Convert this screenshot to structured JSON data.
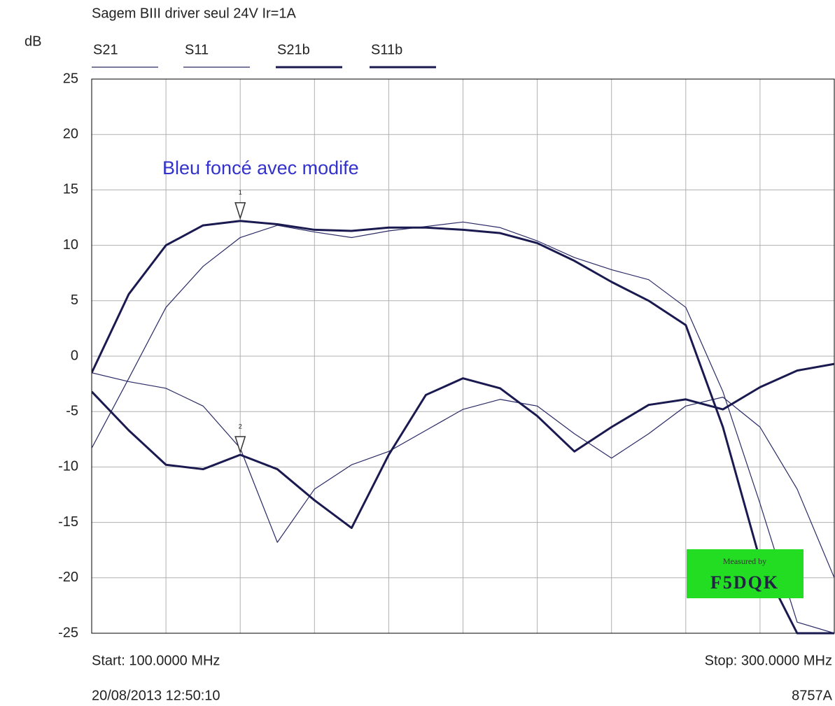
{
  "chart_data": {
    "type": "line",
    "title": "Sagem BIII driver seul 24V Ir=1A",
    "y_label": "dB",
    "annotation": "Bleu foncé avec modife",
    "start_label": "Start: 100.0000 MHz",
    "stop_label": "Stop: 300.0000 MHz",
    "timestamp": "20/08/2013 12:50:10",
    "instrument": "8757A",
    "watermark": {
      "line1": "Measured by",
      "line2": "F5DQK",
      "color": "#22dd22"
    },
    "annotation_color": "#3333cc",
    "xlim": [
      100,
      300
    ],
    "xticks": [
      100,
      120,
      140,
      160,
      180,
      200,
      220,
      240,
      260,
      280,
      300
    ],
    "ylim": [
      -25,
      25
    ],
    "yticks": [
      25,
      20,
      15,
      10,
      5,
      0,
      -5,
      -10,
      -15,
      -20,
      -25
    ],
    "grid": true,
    "x": [
      100,
      110,
      120,
      130,
      140,
      150,
      160,
      170,
      180,
      190,
      200,
      210,
      220,
      230,
      240,
      250,
      260,
      270,
      280,
      290,
      300
    ],
    "series": [
      {
        "name": "S21",
        "color": "#2a2a66",
        "linewidth": 1.2,
        "values": [
          -8.3,
          -2,
          4.4,
          8.1,
          10.7,
          11.8,
          11.2,
          10.7,
          11.3,
          11.7,
          12.1,
          11.6,
          10.4,
          8.9,
          7.8,
          6.9,
          4.4,
          -3.2,
          -13.3,
          -24,
          -25
        ]
      },
      {
        "name": "S11",
        "color": "#2a2a66",
        "linewidth": 1.2,
        "values": [
          -1.5,
          -2.3,
          -2.9,
          -4.5,
          -8.3,
          -16.8,
          -12,
          -9.8,
          -8.6,
          -6.7,
          -4.8,
          -3.9,
          -4.5,
          -7,
          -9.2,
          -7,
          -4.5,
          -3.7,
          -6.4,
          -12,
          -20
        ]
      },
      {
        "name": "S21b",
        "color": "#1a1a50",
        "linewidth": 3,
        "values": [
          -1.5,
          5.6,
          10,
          11.8,
          12.2,
          11.9,
          11.4,
          11.3,
          11.6,
          11.6,
          11.4,
          11.1,
          10.2,
          8.6,
          6.7,
          5,
          2.8,
          -6.4,
          -18.4,
          -25,
          -25
        ]
      },
      {
        "name": "S11b",
        "color": "#1a1a50",
        "linewidth": 3,
        "values": [
          -3.2,
          -6.7,
          -9.8,
          -10.2,
          -8.9,
          -10.2,
          -13,
          -15.5,
          -8.9,
          -3.5,
          -2,
          -2.9,
          -5.4,
          -8.6,
          -6.4,
          -4.4,
          -3.9,
          -4.8,
          -2.8,
          -1.3,
          -0.7
        ]
      }
    ],
    "markers": [
      {
        "label": "1",
        "x": 140,
        "y": 12.2
      },
      {
        "label": "2",
        "x": 140,
        "y": -8.9
      }
    ]
  }
}
